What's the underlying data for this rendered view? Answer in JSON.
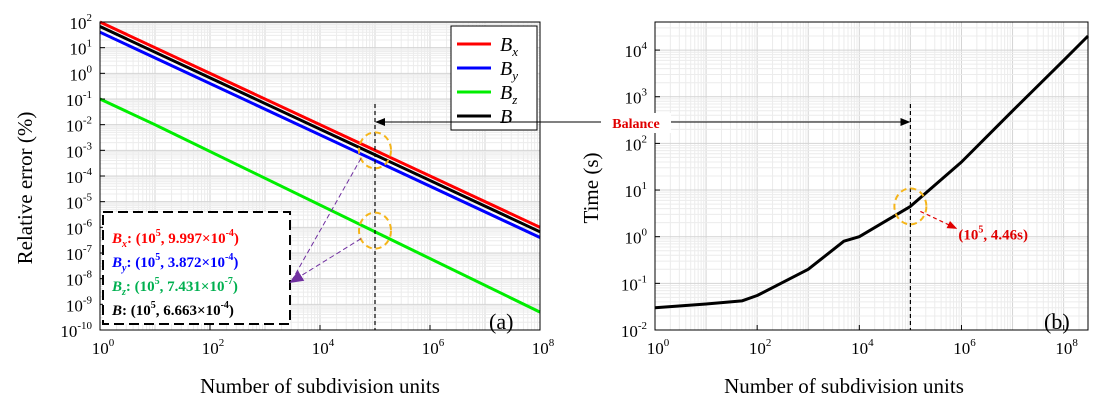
{
  "chart_data": [
    {
      "type": "line",
      "panel_label": "(a)",
      "xlabel": "Number of subdivision units",
      "ylabel": "Relative error (%)",
      "x_scale": "log",
      "y_scale": "log",
      "xlim": [
        1,
        100000000
      ],
      "ylim": [
        1e-10,
        100
      ],
      "x_ticks": [
        {
          "base": "10",
          "exp": "0",
          "value": 1
        },
        {
          "base": "10",
          "exp": "2",
          "value": 100
        },
        {
          "base": "10",
          "exp": "4",
          "value": 10000
        },
        {
          "base": "10",
          "exp": "6",
          "value": 1000000
        },
        {
          "base": "10",
          "exp": "8",
          "value": 100000000
        }
      ],
      "y_ticks": [
        {
          "base": "10",
          "exp": "2",
          "value": 100
        },
        {
          "base": "10",
          "exp": "1",
          "value": 10
        },
        {
          "base": "10",
          "exp": "0",
          "value": 1
        },
        {
          "base": "10",
          "exp": "-1",
          "value": 0.1
        },
        {
          "base": "10",
          "exp": "-2",
          "value": 0.01
        },
        {
          "base": "10",
          "exp": "-3",
          "value": 0.001
        },
        {
          "base": "10",
          "exp": "-4",
          "value": 0.0001
        },
        {
          "base": "10",
          "exp": "-5",
          "value": 1e-05
        },
        {
          "base": "10",
          "exp": "-6",
          "value": 1e-06
        },
        {
          "base": "10",
          "exp": "-7",
          "value": 1e-07
        },
        {
          "base": "10",
          "exp": "-8",
          "value": 1e-08
        },
        {
          "base": "10",
          "exp": "-9",
          "value": 1e-09
        },
        {
          "base": "10",
          "exp": "-10",
          "value": 1e-10
        }
      ],
      "grid": true,
      "legend_position": "top-right",
      "series": [
        {
          "name": "B",
          "sub": "x",
          "color": "#ff0000",
          "x": [
            1,
            100000000
          ],
          "y": [
            100,
            1e-06
          ]
        },
        {
          "name": "B",
          "sub": "y",
          "color": "#0000ff",
          "x": [
            1,
            100000000
          ],
          "y": [
            40,
            4e-07
          ]
        },
        {
          "name": "B",
          "sub": "z",
          "color": "#00ee00",
          "x": [
            1,
            10,
            100000000
          ],
          "y": [
            0.1,
            0.01,
            5e-10
          ]
        },
        {
          "name": "B",
          "sub": "",
          "color": "#000000",
          "x": [
            1,
            100000000
          ],
          "y": [
            67,
            6.7e-07
          ]
        }
      ],
      "vline_x": 100000,
      "highlight_points": [
        {
          "x": 100000,
          "y": 0.0009997
        },
        {
          "x": 100000,
          "y": 7.431e-07
        }
      ],
      "annotations": [
        {
          "sym": "B",
          "sub": "x",
          "color": "#ff0000",
          "pre": ": (10",
          "exp1": "5",
          "mid": ", 9.997×10",
          "exp2": "-4",
          "post": ")"
        },
        {
          "sym": "B",
          "sub": "y",
          "color": "#0000ff",
          "pre": ": (10",
          "exp1": "5",
          "mid": ", 3.872×10",
          "exp2": "-4",
          "post": ")"
        },
        {
          "sym": "B",
          "sub": "z",
          "color": "#00b050",
          "pre": ": (10",
          "exp1": "5",
          "mid": ", 7.431×10",
          "exp2": "-7",
          "post": ")"
        },
        {
          "sym": "B",
          "sub": "",
          "color": "#000000",
          "pre": ": (10",
          "exp1": "5",
          "mid": ", 6.663×10",
          "exp2": "-4",
          "post": ")"
        }
      ]
    },
    {
      "type": "line",
      "panel_label": "(b)",
      "xlabel": "Number of subdivision units",
      "ylabel": "Time (s)",
      "x_scale": "log",
      "y_scale": "log",
      "xlim": [
        1,
        300000000
      ],
      "ylim": [
        0.01,
        40000
      ],
      "x_ticks": [
        {
          "base": "10",
          "exp": "0",
          "value": 1
        },
        {
          "base": "10",
          "exp": "2",
          "value": 100
        },
        {
          "base": "10",
          "exp": "4",
          "value": 10000
        },
        {
          "base": "10",
          "exp": "6",
          "value": 1000000
        },
        {
          "base": "10",
          "exp": "8",
          "value": 100000000
        }
      ],
      "y_ticks": [
        {
          "base": "10",
          "exp": "4",
          "value": 10000
        },
        {
          "base": "10",
          "exp": "3",
          "value": 1000
        },
        {
          "base": "10",
          "exp": "2",
          "value": 100
        },
        {
          "base": "10",
          "exp": "1",
          "value": 10
        },
        {
          "base": "10",
          "exp": "0",
          "value": 1
        },
        {
          "base": "10",
          "exp": "-1",
          "value": 0.1
        },
        {
          "base": "10",
          "exp": "-2",
          "value": 0.01
        }
      ],
      "grid": true,
      "series": [
        {
          "color": "#000000",
          "x": [
            1,
            10,
            50,
            100,
            1000,
            5000,
            10000,
            100000,
            1000000,
            10000000,
            100000000,
            300000000
          ],
          "y": [
            0.03,
            0.036,
            0.042,
            0.055,
            0.2,
            0.8,
            1.0,
            4.46,
            40,
            500,
            6000,
            20000
          ]
        }
      ],
      "vline_x": 100000,
      "highlight_points": [
        {
          "x": 100000,
          "y": 4.46
        }
      ],
      "annotation": {
        "pre": "(10",
        "exp": "5",
        "post": ", 4.46s)",
        "color": "#e00000"
      }
    }
  ],
  "balance_label": "Balance"
}
